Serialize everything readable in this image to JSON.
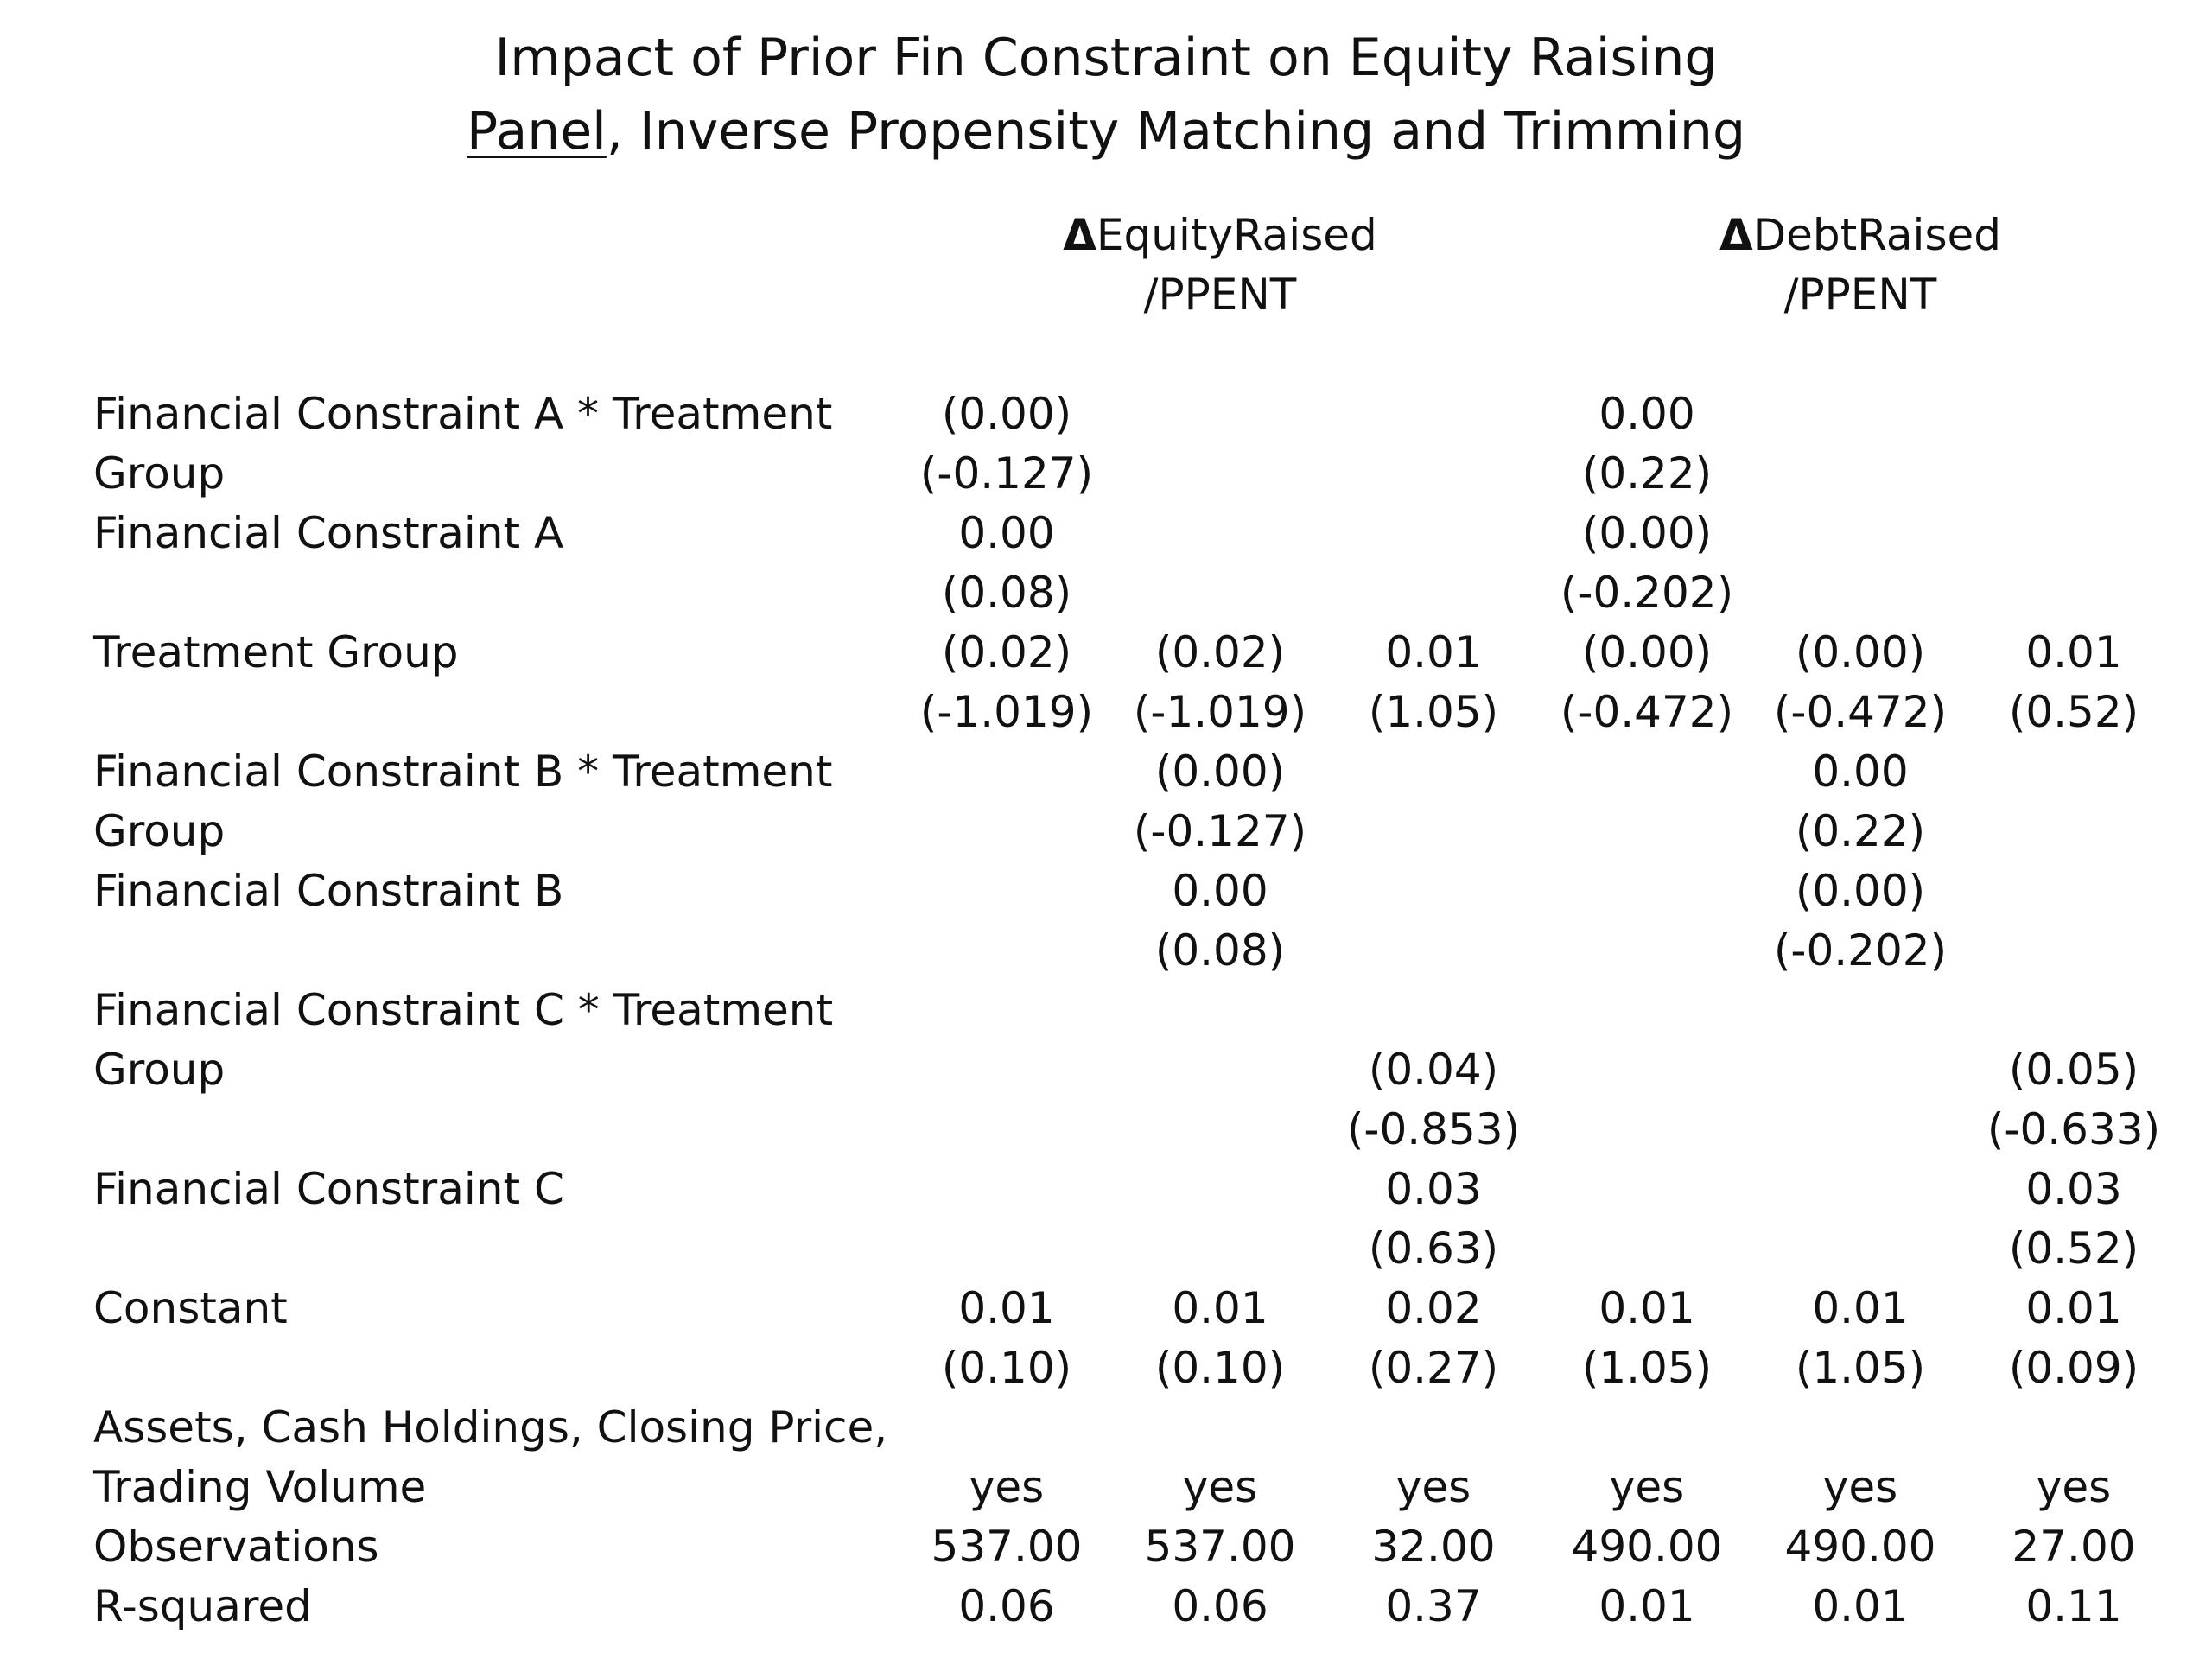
{
  "title": {
    "line1": "Impact of Prior Fin Constraint on Equity Raising",
    "line2_underlined": "Panel",
    "line2_rest": ", Inverse Propensity Matching and Trimming"
  },
  "headers": {
    "equity": {
      "delta": "Δ",
      "line1": "EquityRaised",
      "line2": "/PPENT"
    },
    "debt": {
      "delta": "Δ",
      "line1": "DebtRaised",
      "line2": "/PPENT"
    }
  },
  "rows": [
    {
      "label": "Financial Constraint A * Treatment",
      "cells": [
        "(0.00)",
        "",
        "",
        "0.00",
        "",
        ""
      ]
    },
    {
      "label": "Group",
      "cells": [
        "(-0.127)",
        "",
        "",
        "(0.22)",
        "",
        ""
      ]
    },
    {
      "label": "Financial Constraint A",
      "cells": [
        "0.00",
        "",
        "",
        "(0.00)",
        "",
        ""
      ]
    },
    {
      "label": "",
      "cells": [
        "(0.08)",
        "",
        "",
        "(-0.202)",
        "",
        ""
      ]
    },
    {
      "label": "Treatment Group",
      "cells": [
        "(0.02)",
        "(0.02)",
        "0.01",
        "(0.00)",
        "(0.00)",
        "0.01"
      ]
    },
    {
      "label": "",
      "cells": [
        "(-1.019)",
        "(-1.019)",
        "(1.05)",
        "(-0.472)",
        "(-0.472)",
        "(0.52)"
      ]
    },
    {
      "label": "Financial Constraint B * Treatment",
      "cells": [
        "",
        "(0.00)",
        "",
        "",
        "0.00",
        ""
      ]
    },
    {
      "label": "Group",
      "cells": [
        "",
        "(-0.127)",
        "",
        "",
        "(0.22)",
        ""
      ]
    },
    {
      "label": "Financial Constraint B",
      "cells": [
        "",
        "0.00",
        "",
        "",
        "(0.00)",
        ""
      ]
    },
    {
      "label": "",
      "cells": [
        "",
        "(0.08)",
        "",
        "",
        "(-0.202)",
        ""
      ]
    },
    {
      "label": "Financial Constraint C * Treatment",
      "cells": [
        "",
        "",
        "",
        "",
        "",
        ""
      ]
    },
    {
      "label": "Group",
      "cells": [
        "",
        "",
        "(0.04)",
        "",
        "",
        "(0.05)"
      ]
    },
    {
      "label": "",
      "cells": [
        "",
        "",
        "(-0.853)",
        "",
        "",
        "(-0.633)"
      ]
    },
    {
      "label": "Financial Constraint C",
      "cells": [
        "",
        "",
        "0.03",
        "",
        "",
        "0.03"
      ]
    },
    {
      "label": "",
      "cells": [
        "",
        "",
        "(0.63)",
        "",
        "",
        "(0.52)"
      ]
    },
    {
      "label": "Constant",
      "cells": [
        "0.01",
        "0.01",
        "0.02",
        "0.01",
        "0.01",
        "0.01"
      ]
    },
    {
      "label": "",
      "cells": [
        "(0.10)",
        "(0.10)",
        "(0.27)",
        "(1.05)",
        "(1.05)",
        "(0.09)"
      ]
    },
    {
      "label": "Assets, Cash Holdings, Closing Price,",
      "cells": [
        "",
        "",
        "",
        "",
        "",
        ""
      ]
    },
    {
      "label": "Trading Volume",
      "cells": [
        "yes",
        "yes",
        "yes",
        "yes",
        "yes",
        "yes"
      ]
    },
    {
      "label": "Observations",
      "cells": [
        "537.00",
        "537.00",
        "32.00",
        "490.00",
        "490.00",
        "27.00"
      ]
    },
    {
      "label": "R-squared",
      "cells": [
        "0.06",
        "0.06",
        "0.37",
        "0.01",
        "0.01",
        "0.11"
      ]
    }
  ]
}
